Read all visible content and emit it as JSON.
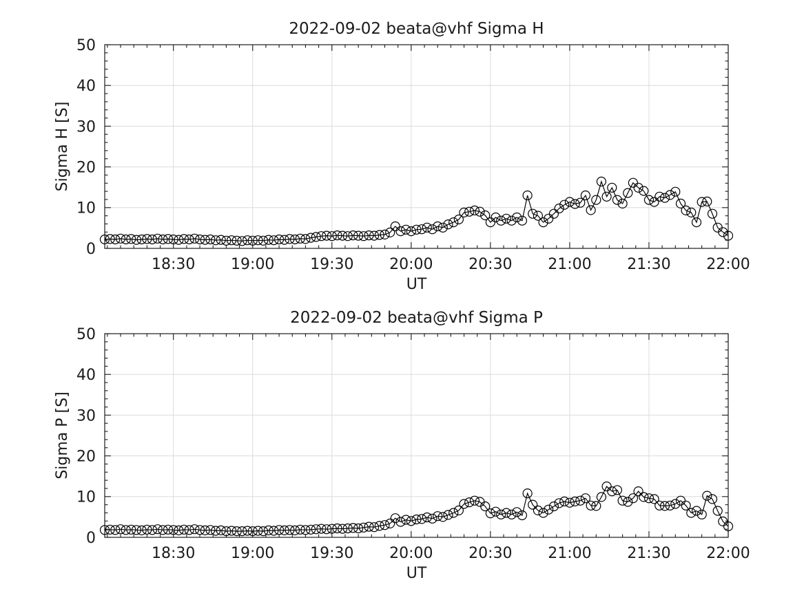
{
  "figure": {
    "background": "#ffffff",
    "axis_color": "#1a1a1a",
    "grid_color": "#dcdcdc",
    "data_color": "#000000"
  },
  "chart_data": [
    {
      "type": "line",
      "title": "2022-09-02  beata@vhf Sigma H",
      "xlabel": "UT",
      "ylabel": "Sigma H [S]",
      "ylim": [
        0,
        50
      ],
      "yticks": [
        0,
        10,
        20,
        30,
        40,
        50
      ],
      "y_minor_step": 2,
      "xtick_labels": [
        "18:30",
        "19:00",
        "19:30",
        "20:00",
        "20:30",
        "21:00",
        "21:30",
        "22:00"
      ],
      "x_minor_step_minutes": 5,
      "x_start": "18:04",
      "x_step_minutes": 2,
      "x_end": "22:00",
      "grid": true,
      "legend": "none",
      "marker": "open-circle",
      "values": [
        2.2,
        2.3,
        2.2,
        2.4,
        2.2,
        2.3,
        2.1,
        2.2,
        2.3,
        2.2,
        2.4,
        2.2,
        2.3,
        2.2,
        2.1,
        2.3,
        2.2,
        2.4,
        2.2,
        2.1,
        2.2,
        2.0,
        2.1,
        1.9,
        2.0,
        1.9,
        1.8,
        2.0,
        1.9,
        2.0,
        1.9,
        2.1,
        2.0,
        2.2,
        2.1,
        2.3,
        2.2,
        2.4,
        2.3,
        2.6,
        2.8,
        3.0,
        3.1,
        3.0,
        3.2,
        3.1,
        3.0,
        3.2,
        3.1,
        3.0,
        3.2,
        3.1,
        3.3,
        3.4,
        3.9,
        5.4,
        4.2,
        4.6,
        4.2,
        4.6,
        4.7,
        5.1,
        4.7,
        5.4,
        5.1,
        5.9,
        6.4,
        7.1,
        8.8,
        9.0,
        9.3,
        9.0,
        8.1,
        6.4,
        7.6,
        6.8,
        7.3,
        6.8,
        7.6,
        6.8,
        13.0,
        8.5,
        8.0,
        6.4,
        7.3,
        8.5,
        9.8,
        10.7,
        11.4,
        10.9,
        11.2,
        13.0,
        9.4,
        11.9,
        16.4,
        12.7,
        14.9,
        11.9,
        11.0,
        13.6,
        16.1,
        14.9,
        14.1,
        11.9,
        11.4,
        12.7,
        12.4,
        13.1,
        13.9,
        11.0,
        9.3,
        8.8,
        6.4,
        11.4,
        11.5,
        8.5,
        5.1,
        4.0,
        3.1
      ]
    },
    {
      "type": "line",
      "title": "2022-09-02  beata@vhf Sigma P",
      "xlabel": "UT",
      "ylabel": "Sigma P [S]",
      "ylim": [
        0,
        50
      ],
      "yticks": [
        0,
        10,
        20,
        30,
        40,
        50
      ],
      "y_minor_step": 2,
      "xtick_labels": [
        "18:30",
        "19:00",
        "19:30",
        "20:00",
        "20:30",
        "21:00",
        "21:30",
        "22:00"
      ],
      "x_minor_step_minutes": 5,
      "x_start": "18:04",
      "x_step_minutes": 2,
      "x_end": "22:00",
      "grid": true,
      "legend": "none",
      "marker": "open-circle",
      "values": [
        1.8,
        1.9,
        1.8,
        2.0,
        1.8,
        1.9,
        1.8,
        1.7,
        1.9,
        1.8,
        2.0,
        1.8,
        1.9,
        1.8,
        1.7,
        1.9,
        1.8,
        2.0,
        1.8,
        1.7,
        1.8,
        1.6,
        1.7,
        1.5,
        1.6,
        1.5,
        1.5,
        1.6,
        1.5,
        1.6,
        1.5,
        1.7,
        1.6,
        1.8,
        1.7,
        1.8,
        1.7,
        1.9,
        1.8,
        1.9,
        2.0,
        2.1,
        2.0,
        2.1,
        2.2,
        2.1,
        2.2,
        2.3,
        2.2,
        2.4,
        2.6,
        2.5,
        2.8,
        3.0,
        3.4,
        4.7,
        3.8,
        4.3,
        4.0,
        4.4,
        4.5,
        4.9,
        4.6,
        5.2,
        5.0,
        5.5,
        6.0,
        6.6,
        8.2,
        8.6,
        9.0,
        8.7,
        7.6,
        5.9,
        6.3,
        5.6,
        6.0,
        5.6,
        6.2,
        5.4,
        10.8,
        8.0,
        6.6,
        6.0,
        6.8,
        7.6,
        8.4,
        8.8,
        8.5,
        8.8,
        9.0,
        9.6,
        7.8,
        7.7,
        9.9,
        12.5,
        11.3,
        11.6,
        9.0,
        8.7,
        9.6,
        11.3,
        9.9,
        9.6,
        9.4,
        7.8,
        7.7,
        7.8,
        8.2,
        9.0,
        7.8,
        6.0,
        6.5,
        5.6,
        10.2,
        9.4,
        6.5,
        3.9,
        2.7
      ]
    }
  ]
}
